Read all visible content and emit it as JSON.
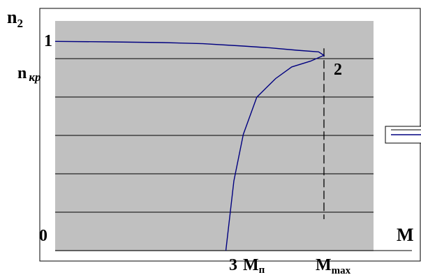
{
  "chart_data": {
    "type": "line",
    "title": "",
    "labels": {
      "y_axis": "n",
      "y_axis_sub": "2",
      "x_axis": "M",
      "y_top": "1",
      "origin": "0",
      "n_cr": "n",
      "n_cr_sub": "кр",
      "point2": "2",
      "point3": "3",
      "m_start": "M",
      "m_start_sub": "п",
      "m_max": "M",
      "m_max_sub": "max"
    },
    "xlim": [
      0,
      1.2
    ],
    "ylim": [
      0,
      1
    ],
    "grid": true,
    "plot_background": "#c0c0c0",
    "curve_color": "#000080",
    "series": [
      {
        "x": [
          0,
          0.2,
          0.4,
          0.55,
          0.7,
          0.8,
          0.9,
          0.98,
          1.0,
          0.95,
          0.88,
          0.82,
          0.75,
          0.7,
          0.665,
          0.635
        ],
        "y": [
          0.9,
          0.898,
          0.895,
          0.89,
          0.88,
          0.872,
          0.862,
          0.855,
          0.84,
          0.815,
          0.79,
          0.74,
          0.66,
          0.5,
          0.3,
          0.0
        ]
      }
    ],
    "markers": {
      "m_max_x": 1.0,
      "n_cr_y": 0.84,
      "m_start_x": 0.635
    }
  },
  "legend": {
    "swatch_color": "#000080"
  }
}
